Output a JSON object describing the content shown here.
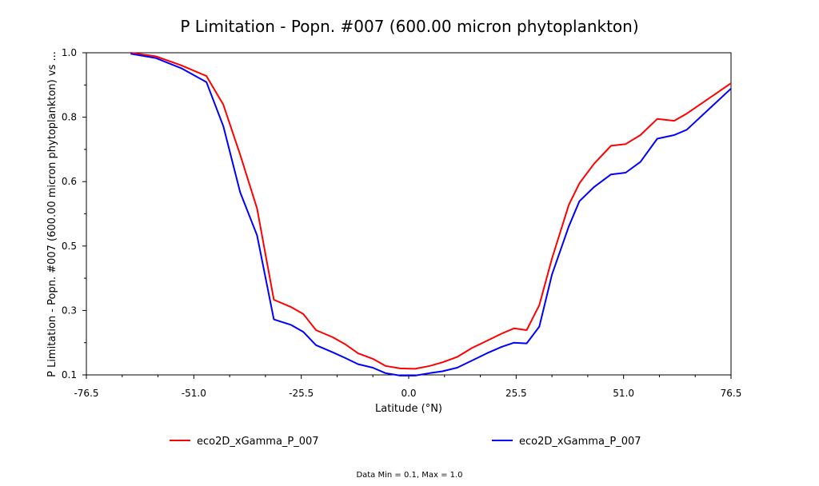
{
  "chart_data": {
    "type": "line",
    "title": "P Limitation - Popn. #007 (600.00 micron phytoplankton)",
    "xlabel": "Latitude (°N)",
    "ylabel": "P Limitation - Popn. #007 (600.00 micron phytoplankton) vs ...",
    "xlim": [
      -76.5,
      76.5
    ],
    "ylim": [
      0.1,
      1.0
    ],
    "xticks": [
      "-76.5",
      "-51.0",
      "-25.5",
      "0.0",
      "25.5",
      "51.0",
      "76.5"
    ],
    "yticks": [
      "0.1",
      "0.3",
      "0.5",
      "0.6",
      "0.8",
      "1.0"
    ],
    "grid": false,
    "legend_position": "bottom",
    "series": [
      {
        "name": "eco2D_xGamma_P_007",
        "color": "#ff0000",
        "x": [
          -66,
          -60,
          -54,
          -48,
          -44,
          -40,
          -36,
          -32,
          -28,
          -25,
          -22,
          -18,
          -15,
          -12,
          -8.5,
          -5.5,
          -2,
          1.5,
          5,
          8,
          11.5,
          15,
          18.5,
          22,
          25,
          28,
          31,
          34,
          38,
          40.5,
          44,
          48,
          51.5,
          55,
          59,
          63,
          66,
          76.5
        ],
        "y": [
          1.0,
          0.99,
          0.965,
          0.935,
          0.855,
          0.715,
          0.565,
          0.31,
          0.29,
          0.27,
          0.225,
          0.205,
          0.185,
          0.16,
          0.145,
          0.125,
          0.118,
          0.117,
          0.125,
          0.135,
          0.15,
          0.175,
          0.195,
          0.215,
          0.23,
          0.225,
          0.295,
          0.425,
          0.575,
          0.635,
          0.69,
          0.74,
          0.745,
          0.77,
          0.815,
          0.81,
          0.83,
          0.915
        ]
      },
      {
        "name": "eco2D_xGamma_P_007",
        "color": "#0000ff",
        "x": [
          -66,
          -60,
          -54,
          -48,
          -44,
          -40,
          -36,
          -32,
          -28,
          -25,
          -22,
          -18,
          -15,
          -12,
          -8.5,
          -5.5,
          -2,
          1.5,
          5,
          8,
          11.5,
          15,
          18.5,
          22,
          25,
          28,
          31,
          34,
          38,
          40.5,
          44,
          48,
          51.5,
          55,
          59,
          63,
          66,
          76.5
        ],
        "y": [
          0.997,
          0.985,
          0.957,
          0.918,
          0.795,
          0.61,
          0.49,
          0.255,
          0.24,
          0.22,
          0.183,
          0.163,
          0.147,
          0.13,
          0.12,
          0.105,
          0.098,
          0.098,
          0.105,
          0.11,
          0.12,
          0.14,
          0.16,
          0.178,
          0.19,
          0.188,
          0.235,
          0.38,
          0.515,
          0.585,
          0.625,
          0.66,
          0.665,
          0.695,
          0.76,
          0.77,
          0.785,
          0.9
        ]
      }
    ]
  },
  "footnote": "Data Min = 0.1, Max = 1.0"
}
